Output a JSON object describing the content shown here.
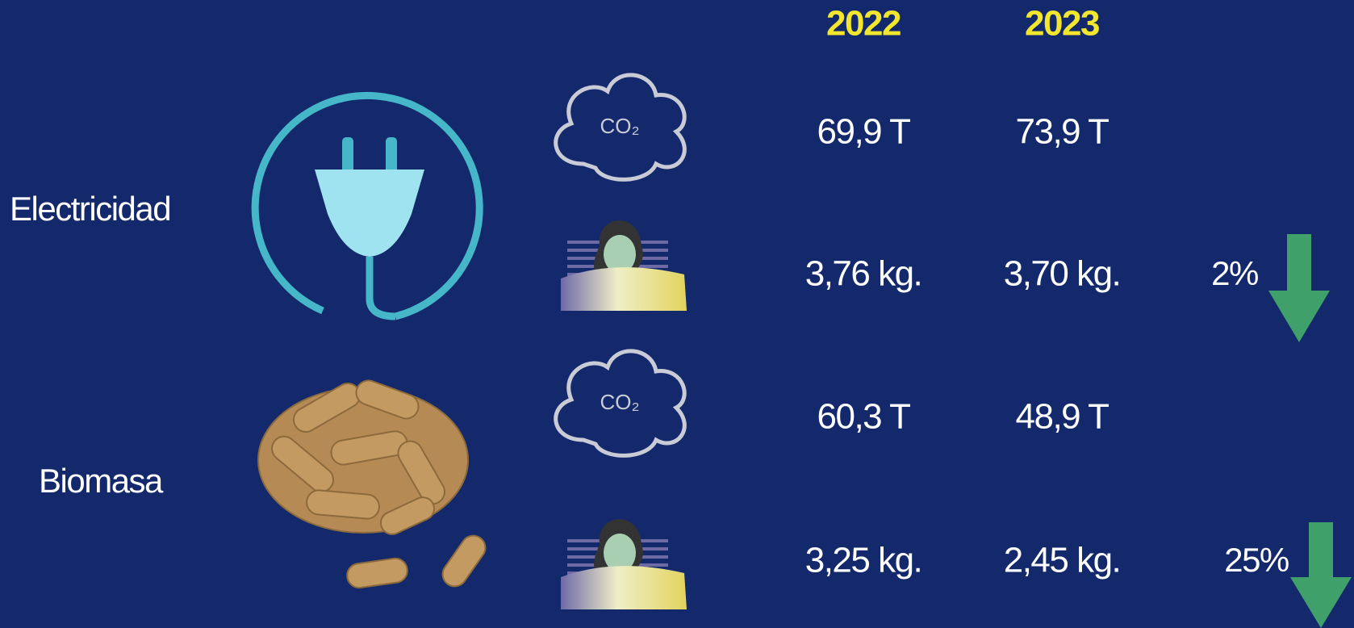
{
  "header": {
    "years": [
      "2022",
      "2023"
    ]
  },
  "sections": [
    {
      "label": "Electricidad",
      "rows": [
        {
          "icon_text": "CO₂",
          "values": [
            "69,9 T",
            "73,9 T"
          ]
        },
        {
          "values": [
            "3,76 kg.",
            "3,70 kg."
          ],
          "change": "2%"
        }
      ]
    },
    {
      "label": "Biomasa",
      "rows": [
        {
          "icon_text": "CO₂",
          "values": [
            "60,3 T",
            "48,9 T"
          ]
        },
        {
          "values": [
            "3,25 kg.",
            "2,45 kg."
          ],
          "change": "25%"
        }
      ]
    }
  ]
}
